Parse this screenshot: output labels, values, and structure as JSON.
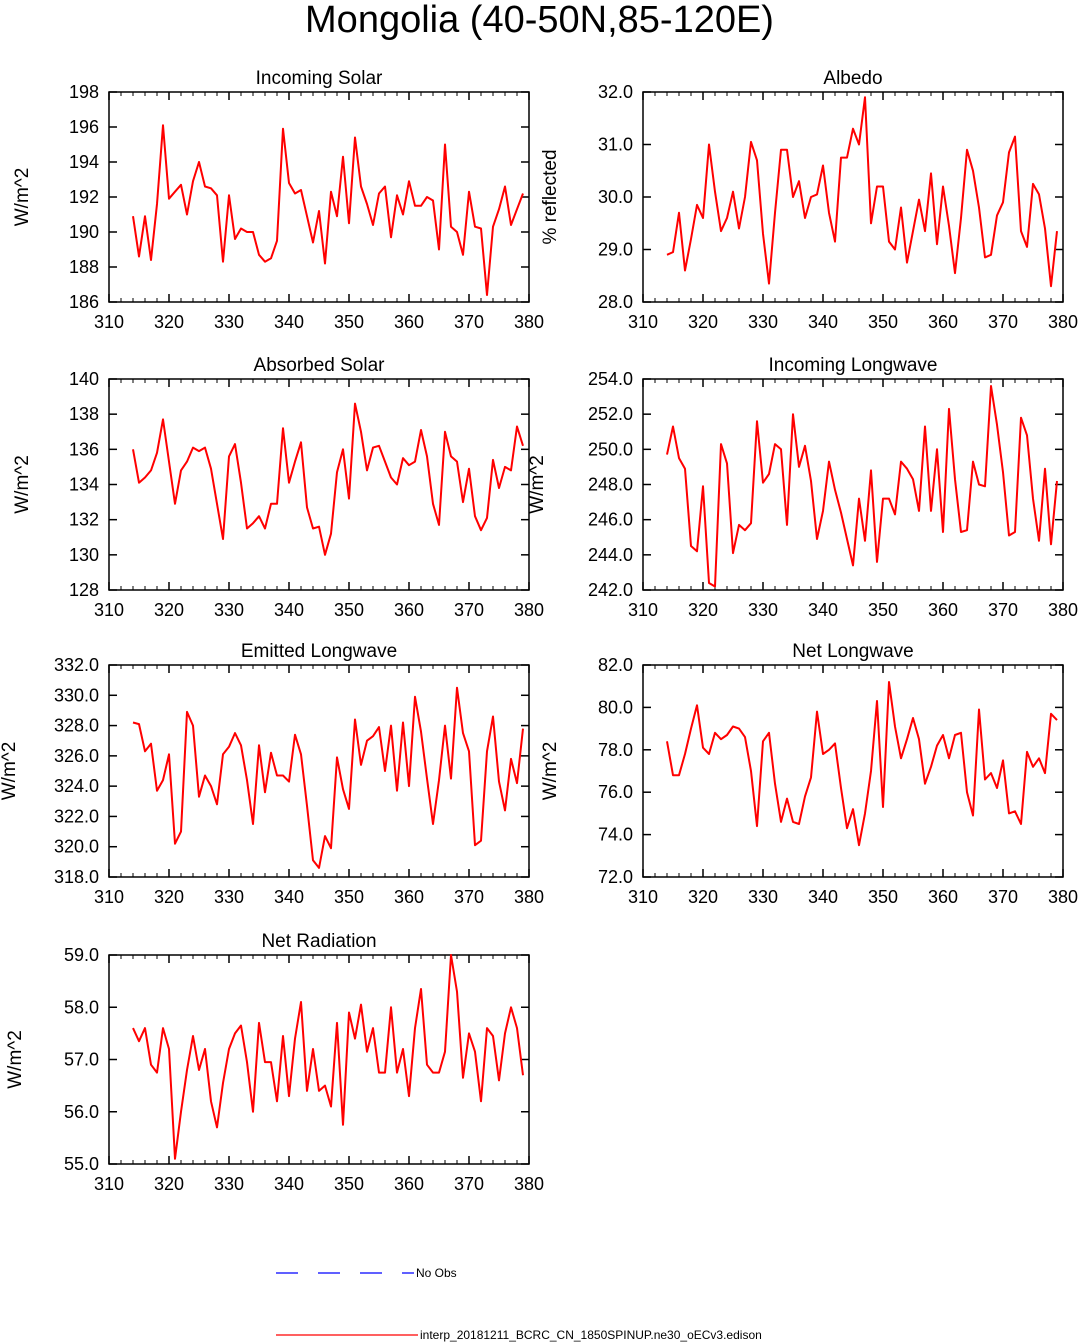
{
  "figure": {
    "title": "Mongolia (40-50N,85-120E)",
    "legend": [
      {
        "label": "No Obs",
        "color": "#0000ff",
        "dash": "dashed"
      },
      {
        "label": "interp_20181211_BCRC_CN_1850SPINUP.ne30_oECv3.edison",
        "color": "#ff0000",
        "dash": "solid"
      }
    ]
  },
  "chart_data": [
    {
      "type": "line",
      "title": "Incoming Solar",
      "ylabel": "W/m^2",
      "xlim": [
        310,
        380
      ],
      "ylim": [
        186,
        198
      ],
      "xticks": [
        "310",
        "320",
        "330",
        "340",
        "350",
        "360",
        "370",
        "380"
      ],
      "yticks": [
        "186",
        "188",
        "190",
        "192",
        "194",
        "196",
        "198"
      ],
      "x_start": 314,
      "series": [
        {
          "color": "#ff0000",
          "values": [
            190.9,
            188.6,
            190.9,
            188.4,
            191.6,
            196.1,
            191.9,
            192.3,
            192.7,
            191.0,
            192.9,
            194.0,
            192.6,
            192.5,
            192.1,
            188.3,
            192.1,
            189.6,
            190.2,
            190.0,
            190.0,
            188.7,
            188.3,
            188.5,
            189.5,
            195.9,
            192.8,
            192.2,
            192.4,
            190.9,
            189.4,
            191.2,
            188.2,
            192.3,
            190.9,
            194.3,
            190.5,
            195.4,
            192.6,
            191.6,
            190.4,
            192.2,
            192.6,
            189.7,
            192.1,
            191.0,
            192.9,
            191.5,
            191.5,
            192.0,
            191.8,
            189.0,
            195.0,
            190.3,
            190.0,
            188.7,
            192.3,
            190.3,
            190.2,
            186.4,
            190.3,
            191.3,
            192.6,
            190.4,
            191.3,
            192.2
          ]
        }
      ]
    },
    {
      "type": "line",
      "title": "Albedo",
      "ylabel": "% reflected",
      "xlim": [
        310,
        380
      ],
      "ylim": [
        28.0,
        32.0
      ],
      "xticks": [
        "310",
        "320",
        "330",
        "340",
        "350",
        "360",
        "370",
        "380"
      ],
      "yticks": [
        "28.0",
        "29.0",
        "30.0",
        "31.0",
        "32.0"
      ],
      "x_start": 314,
      "series": [
        {
          "color": "#ff0000",
          "values": [
            28.9,
            28.95,
            29.7,
            28.6,
            29.2,
            29.85,
            29.6,
            31.0,
            30.1,
            29.35,
            29.6,
            30.1,
            29.4,
            30.0,
            31.05,
            30.7,
            29.3,
            28.35,
            29.7,
            30.9,
            30.9,
            30.0,
            30.3,
            29.6,
            30.0,
            30.05,
            30.6,
            29.7,
            29.15,
            30.75,
            30.75,
            31.3,
            31.0,
            31.9,
            29.5,
            30.2,
            30.2,
            29.15,
            29.0,
            29.8,
            28.75,
            29.35,
            29.95,
            29.35,
            30.45,
            29.1,
            30.2,
            29.45,
            28.55,
            29.6,
            30.9,
            30.5,
            29.8,
            28.85,
            28.9,
            29.65,
            29.9,
            30.85,
            31.15,
            29.35,
            29.05,
            30.25,
            30.05,
            29.4,
            28.3,
            29.35
          ]
        }
      ]
    },
    {
      "type": "line",
      "title": "Absorbed Solar",
      "ylabel": "W/m^2",
      "xlim": [
        310,
        380
      ],
      "ylim": [
        128,
        140
      ],
      "xticks": [
        "310",
        "320",
        "330",
        "340",
        "350",
        "360",
        "370",
        "380"
      ],
      "yticks": [
        "128",
        "130",
        "132",
        "134",
        "136",
        "138",
        "140"
      ],
      "x_start": 314,
      "series": [
        {
          "color": "#ff0000",
          "values": [
            136.0,
            134.1,
            134.4,
            134.8,
            135.8,
            137.7,
            135.3,
            132.9,
            134.8,
            135.3,
            136.1,
            135.9,
            136.1,
            134.9,
            132.9,
            130.9,
            135.6,
            136.3,
            134.1,
            131.5,
            131.8,
            132.2,
            131.5,
            132.9,
            132.9,
            137.2,
            134.1,
            135.3,
            136.4,
            132.7,
            131.5,
            131.6,
            130.0,
            131.2,
            134.7,
            136.0,
            133.2,
            138.6,
            137.0,
            134.8,
            136.1,
            136.2,
            135.3,
            134.4,
            134.0,
            135.5,
            135.1,
            135.3,
            137.1,
            135.6,
            132.9,
            131.7,
            137.0,
            135.6,
            135.3,
            133.0,
            134.9,
            132.2,
            131.4,
            132.1,
            135.4,
            133.8,
            135.0,
            134.8,
            137.3,
            136.2
          ]
        }
      ]
    },
    {
      "type": "line",
      "title": "Incoming Longwave",
      "ylabel": "W/m^2",
      "xlim": [
        310,
        380
      ],
      "ylim": [
        242.0,
        254.0
      ],
      "xticks": [
        "310",
        "320",
        "330",
        "340",
        "350",
        "360",
        "370",
        "380"
      ],
      "yticks": [
        "242.0",
        "244.0",
        "246.0",
        "248.0",
        "250.0",
        "252.0",
        "254.0"
      ],
      "x_start": 314,
      "series": [
        {
          "color": "#ff0000",
          "values": [
            249.7,
            251.3,
            249.5,
            248.9,
            244.5,
            244.2,
            247.9,
            242.4,
            242.2,
            250.3,
            249.2,
            244.1,
            245.7,
            245.4,
            245.8,
            251.6,
            248.1,
            248.6,
            250.3,
            250.0,
            245.7,
            252.0,
            249.0,
            250.2,
            248.2,
            244.9,
            246.5,
            249.3,
            247.7,
            246.4,
            244.9,
            243.4,
            247.2,
            244.8,
            248.8,
            243.6,
            247.2,
            247.2,
            246.3,
            249.3,
            248.9,
            248.3,
            246.5,
            251.3,
            246.5,
            250.0,
            245.3,
            252.3,
            248.3,
            245.3,
            245.4,
            249.3,
            248.0,
            247.9,
            253.6,
            251.4,
            248.7,
            245.1,
            245.3,
            251.8,
            250.8,
            247.2,
            244.8,
            248.9,
            244.6,
            248.2
          ]
        }
      ]
    },
    {
      "type": "line",
      "title": "Emitted Longwave",
      "ylabel": "W/m^2",
      "xlim": [
        310,
        380
      ],
      "ylim": [
        318.0,
        332.0
      ],
      "xticks": [
        "310",
        "320",
        "330",
        "340",
        "350",
        "360",
        "370",
        "380"
      ],
      "yticks": [
        "318.0",
        "320.0",
        "322.0",
        "324.0",
        "326.0",
        "328.0",
        "330.0",
        "332.0"
      ],
      "x_start": 314,
      "series": [
        {
          "color": "#ff0000",
          "values": [
            328.2,
            328.1,
            326.3,
            326.8,
            323.7,
            324.4,
            326.1,
            320.2,
            321.0,
            328.9,
            328.0,
            323.3,
            324.7,
            324.0,
            322.8,
            326.1,
            326.6,
            327.5,
            326.7,
            324.4,
            321.5,
            326.7,
            323.6,
            326.2,
            324.7,
            324.7,
            324.3,
            327.4,
            326.1,
            322.7,
            319.1,
            318.6,
            320.7,
            319.9,
            325.9,
            323.8,
            322.5,
            328.4,
            325.4,
            327.0,
            327.3,
            327.9,
            325.0,
            328.0,
            323.7,
            328.2,
            324.0,
            329.9,
            327.6,
            324.5,
            321.5,
            324.4,
            328.0,
            324.5,
            330.5,
            327.5,
            326.3,
            320.1,
            320.4,
            326.3,
            328.6,
            324.3,
            322.4,
            325.8,
            324.2,
            327.8
          ]
        }
      ]
    },
    {
      "type": "line",
      "title": "Net Longwave",
      "ylabel": "W/m^2",
      "xlim": [
        310,
        380
      ],
      "ylim": [
        72.0,
        82.0
      ],
      "xticks": [
        "310",
        "320",
        "330",
        "340",
        "350",
        "360",
        "370",
        "380"
      ],
      "yticks": [
        "72.0",
        "74.0",
        "76.0",
        "78.0",
        "80.0",
        "82.0"
      ],
      "x_start": 314,
      "series": [
        {
          "color": "#ff0000",
          "values": [
            78.4,
            76.8,
            76.8,
            77.8,
            79.0,
            80.1,
            78.1,
            77.8,
            78.8,
            78.5,
            78.7,
            79.1,
            79.0,
            78.6,
            77.0,
            74.4,
            78.4,
            78.8,
            76.4,
            74.6,
            75.7,
            74.6,
            74.5,
            75.8,
            76.7,
            79.8,
            77.8,
            78.0,
            78.3,
            76.2,
            74.3,
            75.2,
            73.5,
            75.0,
            77.0,
            80.3,
            75.3,
            81.2,
            79.1,
            77.6,
            78.5,
            79.5,
            78.5,
            76.4,
            77.2,
            78.2,
            78.7,
            77.6,
            78.7,
            78.8,
            76.0,
            74.9,
            79.9,
            76.6,
            76.9,
            76.2,
            77.5,
            75.0,
            75.1,
            74.5,
            77.9,
            77.2,
            77.6,
            76.9,
            79.7,
            79.4
          ]
        }
      ]
    },
    {
      "type": "line",
      "title": "Net Radiation",
      "ylabel": "W/m^2",
      "xlim": [
        310,
        380
      ],
      "ylim": [
        55.0,
        59.0
      ],
      "xticks": [
        "310",
        "320",
        "330",
        "340",
        "350",
        "360",
        "370",
        "380"
      ],
      "yticks": [
        "55.0",
        "56.0",
        "57.0",
        "58.0",
        "59.0"
      ],
      "x_start": 314,
      "series": [
        {
          "color": "#ff0000",
          "values": [
            57.6,
            57.35,
            57.6,
            56.9,
            56.75,
            57.6,
            57.2,
            55.1,
            56.0,
            56.8,
            57.45,
            56.8,
            57.2,
            56.2,
            55.7,
            56.55,
            57.2,
            57.5,
            57.65,
            56.95,
            56.0,
            57.7,
            56.95,
            56.95,
            56.2,
            57.45,
            56.3,
            57.4,
            58.1,
            56.4,
            57.2,
            56.4,
            56.5,
            56.1,
            57.7,
            55.75,
            57.9,
            57.4,
            58.05,
            57.15,
            57.6,
            56.75,
            56.75,
            58.0,
            56.75,
            57.2,
            56.3,
            57.6,
            58.35,
            56.9,
            56.75,
            56.75,
            57.15,
            59.0,
            58.3,
            56.65,
            57.5,
            57.15,
            56.2,
            57.6,
            57.45,
            56.6,
            57.5,
            58.0,
            57.6,
            56.7
          ]
        }
      ]
    }
  ]
}
